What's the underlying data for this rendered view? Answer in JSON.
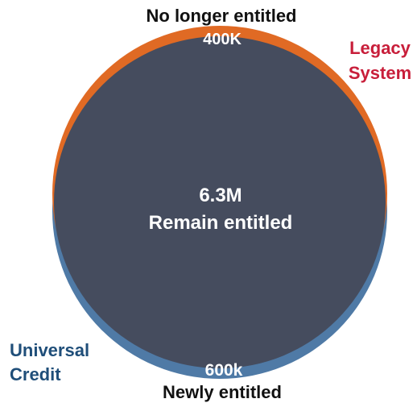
{
  "colors": {
    "legacy": "#E06A24",
    "universal_credit": "#4F7AA6",
    "overlap": "#454C5E",
    "legacy_label": "#C81E3A",
    "uc_label": "#1F4E79",
    "text_dark": "#111111",
    "text_light": "#FFFFFF"
  },
  "top_label": "No longer entitled",
  "top_value": "400K",
  "center_value": "6.3M",
  "center_label": "Remain entitled",
  "bottom_value": "600k",
  "bottom_label": "Newly entitled",
  "legacy_label": [
    "Legacy",
    "System"
  ],
  "uc_label": [
    "Universal",
    "Credit"
  ],
  "chart_data": {
    "type": "venn",
    "sets": [
      {
        "name": "Legacy System",
        "only_value": "400K",
        "only_label": "No longer entitled"
      },
      {
        "name": "Universal Credit",
        "only_value": "600k",
        "only_label": "Newly entitled"
      }
    ],
    "intersection": {
      "value": "6.3M",
      "label": "Remain entitled"
    }
  }
}
